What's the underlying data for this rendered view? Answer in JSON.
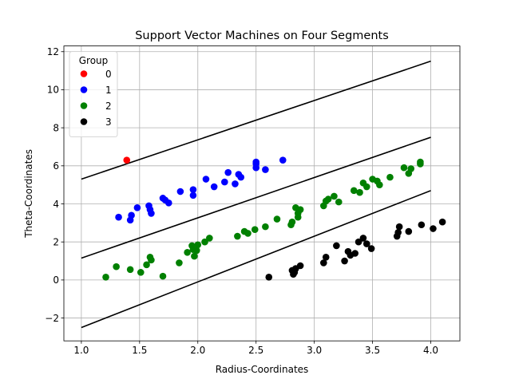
{
  "chart_data": {
    "type": "scatter",
    "title": "Support Vector Machines on Four Segments",
    "xlabel": "Radius-Coordinates",
    "ylabel": "Theta-Coordinates",
    "xlim": [
      0.85,
      4.25
    ],
    "ylim": [
      -3.2,
      12.3
    ],
    "xticks": [
      "1.0",
      "1.5",
      "2.0",
      "2.5",
      "3.0",
      "3.5",
      "4.0"
    ],
    "xtick_values": [
      1.0,
      1.5,
      2.0,
      2.5,
      3.0,
      3.5,
      4.0
    ],
    "yticks": [
      "−2",
      "0",
      "2",
      "4",
      "6",
      "8",
      "10",
      "12"
    ],
    "ytick_values": [
      -2,
      0,
      2,
      4,
      6,
      8,
      10,
      12
    ],
    "grid": true,
    "legend": {
      "title": "Group",
      "placement": "top-left"
    },
    "series": [
      {
        "name": "0",
        "color": "#ff0000",
        "points": [
          [
            1.39,
            6.3
          ]
        ]
      },
      {
        "name": "1",
        "color": "#0000ff",
        "points": [
          [
            1.32,
            3.3
          ],
          [
            1.42,
            3.15
          ],
          [
            1.43,
            3.4
          ],
          [
            1.48,
            3.8
          ],
          [
            1.58,
            3.9
          ],
          [
            1.59,
            3.7
          ],
          [
            1.6,
            3.5
          ],
          [
            1.7,
            4.3
          ],
          [
            1.72,
            4.2
          ],
          [
            1.75,
            4.05
          ],
          [
            1.85,
            4.65
          ],
          [
            1.96,
            4.45
          ],
          [
            1.96,
            4.75
          ],
          [
            2.07,
            5.3
          ],
          [
            2.14,
            4.9
          ],
          [
            2.23,
            5.15
          ],
          [
            2.26,
            5.65
          ],
          [
            2.32,
            5.05
          ],
          [
            2.35,
            5.55
          ],
          [
            2.37,
            5.4
          ],
          [
            2.5,
            6.1
          ],
          [
            2.5,
            5.9
          ],
          [
            2.5,
            6.2
          ],
          [
            2.58,
            5.8
          ],
          [
            2.73,
            6.3
          ]
        ]
      },
      {
        "name": "2",
        "color": "#008000",
        "points": [
          [
            1.21,
            0.15
          ],
          [
            1.3,
            0.7
          ],
          [
            1.42,
            0.55
          ],
          [
            1.51,
            0.4
          ],
          [
            1.56,
            0.8
          ],
          [
            1.59,
            1.2
          ],
          [
            1.6,
            1.05
          ],
          [
            1.7,
            0.2
          ],
          [
            1.84,
            0.9
          ],
          [
            1.91,
            1.45
          ],
          [
            1.95,
            1.8
          ],
          [
            1.96,
            1.6
          ],
          [
            1.97,
            1.25
          ],
          [
            1.99,
            1.55
          ],
          [
            2.0,
            1.85
          ],
          [
            2.06,
            2.0
          ],
          [
            2.1,
            2.2
          ],
          [
            2.34,
            2.3
          ],
          [
            2.4,
            2.55
          ],
          [
            2.43,
            2.45
          ],
          [
            2.49,
            2.65
          ],
          [
            2.58,
            2.8
          ],
          [
            2.68,
            3.2
          ],
          [
            2.8,
            2.9
          ],
          [
            2.81,
            3.05
          ],
          [
            2.84,
            3.8
          ],
          [
            2.86,
            3.5
          ],
          [
            2.86,
            3.3
          ],
          [
            2.88,
            3.7
          ],
          [
            3.08,
            3.9
          ],
          [
            3.1,
            4.15
          ],
          [
            3.12,
            4.25
          ],
          [
            3.17,
            4.4
          ],
          [
            3.21,
            4.1
          ],
          [
            3.34,
            4.7
          ],
          [
            3.39,
            4.6
          ],
          [
            3.42,
            5.1
          ],
          [
            3.45,
            4.9
          ],
          [
            3.5,
            5.3
          ],
          [
            3.54,
            5.2
          ],
          [
            3.56,
            5.0
          ],
          [
            3.65,
            5.4
          ],
          [
            3.77,
            5.9
          ],
          [
            3.81,
            5.6
          ],
          [
            3.83,
            5.85
          ],
          [
            3.91,
            6.1
          ],
          [
            3.91,
            6.2
          ]
        ]
      },
      {
        "name": "3",
        "color": "#000000",
        "points": [
          [
            2.61,
            0.15
          ],
          [
            2.81,
            0.5
          ],
          [
            2.82,
            0.3
          ],
          [
            2.83,
            0.4
          ],
          [
            2.84,
            0.6
          ],
          [
            2.88,
            0.75
          ],
          [
            3.08,
            0.9
          ],
          [
            3.1,
            1.2
          ],
          [
            3.19,
            1.8
          ],
          [
            3.26,
            1.0
          ],
          [
            3.29,
            1.5
          ],
          [
            3.31,
            1.3
          ],
          [
            3.35,
            1.4
          ],
          [
            3.38,
            2.0
          ],
          [
            3.42,
            2.2
          ],
          [
            3.45,
            1.9
          ],
          [
            3.49,
            1.65
          ],
          [
            3.71,
            2.3
          ],
          [
            3.72,
            2.5
          ],
          [
            3.73,
            2.8
          ],
          [
            3.81,
            2.55
          ],
          [
            3.92,
            2.9
          ],
          [
            4.02,
            2.7
          ],
          [
            4.1,
            3.05
          ]
        ]
      }
    ],
    "lines": [
      {
        "color": "#000000",
        "x": [
          1.0,
          4.0
        ],
        "y": [
          5.3,
          11.5
        ]
      },
      {
        "color": "#000000",
        "x": [
          1.0,
          4.0
        ],
        "y": [
          1.15,
          7.5
        ]
      },
      {
        "color": "#000000",
        "x": [
          1.0,
          4.0
        ],
        "y": [
          -2.5,
          4.7
        ]
      }
    ]
  }
}
